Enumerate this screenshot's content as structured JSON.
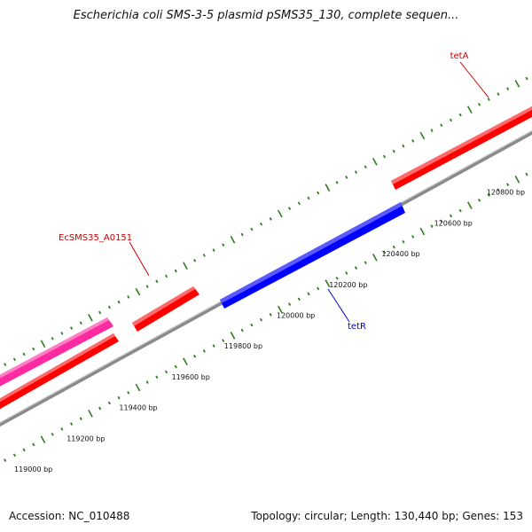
{
  "title": "Escherichia coli SMS-3-5 plasmid pSMS35_130, complete sequen...",
  "footer": {
    "accession": "Accession: NC_010488",
    "summary": "Topology: circular; Length: 130,440 bp; Genes: 153"
  },
  "colors": {
    "backbone": "#8a8a8a",
    "tick": "#2e7d1e",
    "forward_gene": "#ff0000",
    "reverse_gene": "#0000ff",
    "pink_gene": "#ff2aa0",
    "label_red": "#cc0000",
    "label_blue": "#0000cc"
  },
  "ticks": [
    {
      "label": "119000 bp"
    },
    {
      "label": "119200 bp"
    },
    {
      "label": "119400 bp"
    },
    {
      "label": "119600 bp"
    },
    {
      "label": "119800 bp"
    },
    {
      "label": "120000 bp"
    },
    {
      "label": "120200 bp"
    },
    {
      "label": "120400 bp"
    },
    {
      "label": "120600 bp"
    },
    {
      "label": "120800 bp"
    }
  ],
  "gene_labels": {
    "tetA": "tetA",
    "ecsms": "EcSMS35_A0151",
    "tetR": "tetR"
  }
}
